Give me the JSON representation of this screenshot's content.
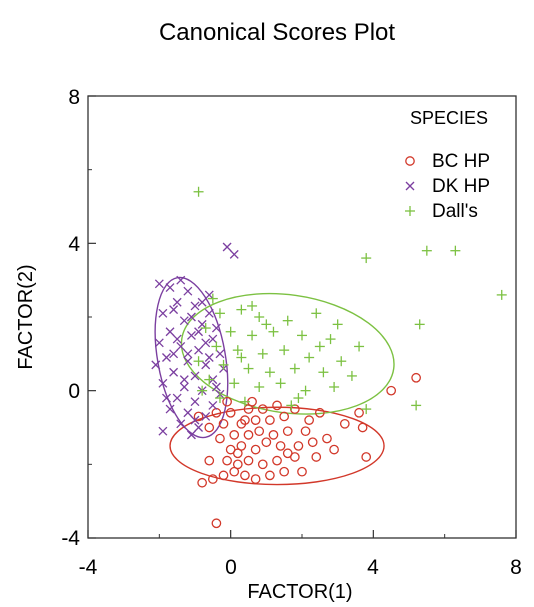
{
  "chart_data": {
    "type": "scatter",
    "title": "Canonical Scores Plot",
    "xlabel": "FACTOR(1)",
    "ylabel": "FACTOR(2)",
    "xlim": [
      -4,
      8
    ],
    "ylim": [
      -4,
      8
    ],
    "xticks": [
      "-4",
      "0",
      "4",
      "8"
    ],
    "yticks": [
      "-4",
      "0",
      "4",
      "8"
    ],
    "grid": false,
    "legend": {
      "title": "SPECIES",
      "placement": "top-right"
    },
    "series": [
      {
        "name": "BC HP",
        "marker": "circle",
        "color": "#d2382a",
        "ellipse": {
          "center": [
            1.3,
            -1.5
          ],
          "semi_axes": [
            3.0,
            1.05
          ],
          "rotation_deg": 0
        },
        "points": [
          [
            -0.4,
            -3.6
          ],
          [
            -0.8,
            -2.5
          ],
          [
            -0.5,
            -2.4
          ],
          [
            -0.2,
            -2.3
          ],
          [
            0.1,
            -2.2
          ],
          [
            0.4,
            -2.3
          ],
          [
            0.7,
            -2.4
          ],
          [
            1.1,
            -2.3
          ],
          [
            1.5,
            -2.2
          ],
          [
            2.0,
            -2.2
          ],
          [
            0.2,
            -2.0
          ],
          [
            -0.1,
            -1.9
          ],
          [
            0.5,
            -1.9
          ],
          [
            0.9,
            -2.0
          ],
          [
            1.3,
            -1.9
          ],
          [
            1.8,
            -1.8
          ],
          [
            2.4,
            -1.8
          ],
          [
            3.8,
            -1.8
          ],
          [
            0.0,
            -1.6
          ],
          [
            0.3,
            -1.5
          ],
          [
            0.7,
            -1.6
          ],
          [
            1.0,
            -1.4
          ],
          [
            1.4,
            -1.5
          ],
          [
            1.9,
            -1.5
          ],
          [
            2.3,
            -1.4
          ],
          [
            -0.3,
            -1.3
          ],
          [
            0.1,
            -1.2
          ],
          [
            0.5,
            -1.2
          ],
          [
            0.8,
            -1.1
          ],
          [
            1.2,
            -1.2
          ],
          [
            1.6,
            -1.1
          ],
          [
            2.1,
            -1.1
          ],
          [
            2.7,
            -1.3
          ],
          [
            3.7,
            -1.0
          ],
          [
            -0.6,
            -1.0
          ],
          [
            -0.2,
            -0.9
          ],
          [
            0.3,
            -0.9
          ],
          [
            0.7,
            -0.8
          ],
          [
            1.1,
            -0.8
          ],
          [
            1.5,
            -0.7
          ],
          [
            2.2,
            -0.8
          ],
          [
            3.2,
            -0.9
          ],
          [
            -0.9,
            -0.7
          ],
          [
            -0.4,
            -0.6
          ],
          [
            0.0,
            -0.6
          ],
          [
            0.5,
            -0.5
          ],
          [
            0.9,
            -0.5
          ],
          [
            1.8,
            -0.5
          ],
          [
            2.5,
            -0.6
          ],
          [
            3.6,
            -0.6
          ],
          [
            -0.1,
            -0.3
          ],
          [
            0.6,
            -0.3
          ],
          [
            4.5,
            0.0
          ],
          [
            5.2,
            0.35
          ],
          [
            0.2,
            -1.7
          ],
          [
            1.6,
            -1.7
          ],
          [
            -0.6,
            -1.9
          ],
          [
            2.9,
            -1.6
          ],
          [
            1.3,
            -0.4
          ],
          [
            0.4,
            -0.8
          ]
        ]
      },
      {
        "name": "DK HP",
        "marker": "x",
        "color": "#7b3fa0",
        "ellipse": {
          "center": [
            -1.1,
            0.9
          ],
          "semi_axes": [
            0.95,
            2.2
          ],
          "rotation_deg": 10
        },
        "points": [
          [
            -0.1,
            3.9
          ],
          [
            0.1,
            3.7
          ],
          [
            -2.0,
            2.9
          ],
          [
            -1.7,
            2.8
          ],
          [
            -1.2,
            2.7
          ],
          [
            -1.5,
            2.4
          ],
          [
            -1.0,
            2.3
          ],
          [
            -0.6,
            2.1
          ],
          [
            -1.9,
            2.1
          ],
          [
            -1.3,
            1.9
          ],
          [
            -0.8,
            1.8
          ],
          [
            -1.7,
            1.6
          ],
          [
            -1.1,
            1.5
          ],
          [
            -0.5,
            1.4
          ],
          [
            -2.0,
            1.3
          ],
          [
            -1.4,
            1.2
          ],
          [
            -0.9,
            1.1
          ],
          [
            -0.3,
            1.0
          ],
          [
            -1.8,
            0.9
          ],
          [
            -1.2,
            0.8
          ],
          [
            -0.7,
            0.7
          ],
          [
            -0.2,
            0.6
          ],
          [
            -1.6,
            0.5
          ],
          [
            -1.0,
            0.4
          ],
          [
            -0.5,
            0.3
          ],
          [
            -1.9,
            0.2
          ],
          [
            -1.3,
            0.1
          ],
          [
            -0.8,
            0.0
          ],
          [
            -0.3,
            -0.1
          ],
          [
            -1.5,
            -0.2
          ],
          [
            -1.0,
            -0.3
          ],
          [
            -0.5,
            -0.4
          ],
          [
            -1.7,
            -0.5
          ],
          [
            -1.2,
            -0.6
          ],
          [
            -0.7,
            -0.7
          ],
          [
            -1.4,
            -0.9
          ],
          [
            -0.9,
            -1.0
          ],
          [
            -1.9,
            -1.1
          ],
          [
            -1.1,
            -1.2
          ],
          [
            -0.6,
            2.6
          ],
          [
            -1.4,
            3.0
          ],
          [
            -1.6,
            1.0
          ],
          [
            -1.1,
            2.0
          ],
          [
            -0.4,
            1.7
          ],
          [
            -2.1,
            0.7
          ],
          [
            -1.5,
            1.4
          ],
          [
            -0.9,
            1.6
          ],
          [
            -1.3,
            0.3
          ],
          [
            -0.6,
            0.9
          ],
          [
            -1.8,
            -0.2
          ],
          [
            -0.8,
            2.4
          ],
          [
            -1.2,
            1.0
          ],
          [
            -1.0,
            -0.8
          ],
          [
            -0.4,
            0.1
          ],
          [
            -1.6,
            2.2
          ],
          [
            -0.7,
            1.3
          ]
        ]
      },
      {
        "name": "Dall's",
        "marker": "plus",
        "color": "#7cc142",
        "ellipse": {
          "center": [
            1.6,
            1.0
          ],
          "semi_axes": [
            3.0,
            1.6
          ],
          "rotation_deg": -8
        },
        "points": [
          [
            -0.9,
            5.4
          ],
          [
            7.6,
            2.6
          ],
          [
            6.3,
            3.8
          ],
          [
            5.5,
            3.8
          ],
          [
            3.8,
            3.6
          ],
          [
            5.3,
            1.8
          ],
          [
            5.2,
            -0.4
          ],
          [
            -0.5,
            2.5
          ],
          [
            -0.3,
            2.1
          ],
          [
            0.3,
            2.2
          ],
          [
            0.8,
            2.0
          ],
          [
            1.6,
            1.9
          ],
          [
            2.4,
            2.1
          ],
          [
            3.0,
            1.8
          ],
          [
            -0.7,
            1.7
          ],
          [
            0.0,
            1.6
          ],
          [
            0.6,
            1.5
          ],
          [
            1.2,
            1.6
          ],
          [
            2.0,
            1.5
          ],
          [
            2.8,
            1.4
          ],
          [
            3.6,
            1.2
          ],
          [
            -0.4,
            1.2
          ],
          [
            0.2,
            1.1
          ],
          [
            0.9,
            1.0
          ],
          [
            1.5,
            1.1
          ],
          [
            2.2,
            0.9
          ],
          [
            3.1,
            0.8
          ],
          [
            -0.9,
            0.8
          ],
          [
            -0.2,
            0.7
          ],
          [
            0.5,
            0.6
          ],
          [
            1.1,
            0.5
          ],
          [
            1.8,
            0.6
          ],
          [
            2.6,
            0.5
          ],
          [
            3.4,
            0.4
          ],
          [
            -0.6,
            0.3
          ],
          [
            0.1,
            0.2
          ],
          [
            0.8,
            0.1
          ],
          [
            1.4,
            0.2
          ],
          [
            2.1,
            0.0
          ],
          [
            3.8,
            -0.5
          ],
          [
            -0.3,
            -0.2
          ],
          [
            0.4,
            -0.3
          ],
          [
            1.7,
            -0.4
          ],
          [
            2.9,
            0.1
          ],
          [
            1.0,
            1.8
          ],
          [
            0.3,
            0.9
          ],
          [
            2.5,
            1.2
          ],
          [
            1.9,
            -0.2
          ],
          [
            -0.8,
            0.0
          ],
          [
            0.6,
            2.3
          ]
        ]
      }
    ]
  }
}
